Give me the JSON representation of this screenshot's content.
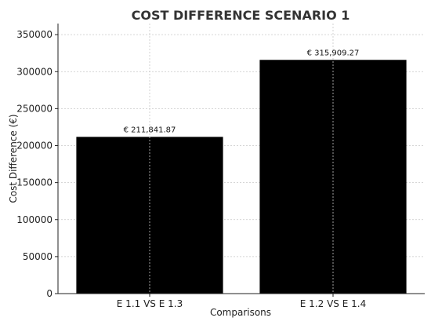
{
  "chart_data": {
    "type": "bar",
    "title": "COST DIFFERENCE SCENARIO 1",
    "xlabel": "Comparisons",
    "ylabel": "Cost Difference (€)",
    "categories": [
      "E 1.1 VS E 1.3",
      "E 1.2 VS E 1.4"
    ],
    "values": [
      211841.87,
      315909.27
    ],
    "data_labels": [
      "€ 211,841.87",
      "€ 315,909.27"
    ],
    "ylim": [
      0,
      365000
    ],
    "yticks": [
      0,
      50000,
      100000,
      150000,
      200000,
      250000,
      300000,
      350000
    ],
    "ytick_labels": [
      "0",
      "50000",
      "100000",
      "150000",
      "200000",
      "250000",
      "300000",
      "350000"
    ],
    "grid": true,
    "colors": {
      "bar": "#000000",
      "grid": "#c8c8c8",
      "title": "#333333"
    }
  }
}
